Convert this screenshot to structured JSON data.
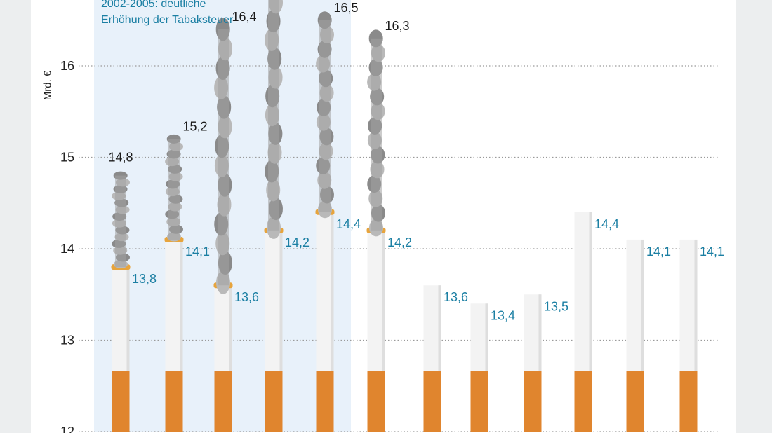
{
  "annotation": {
    "line1": "2002-2005: deutliche",
    "line2": "Erhöhung der Tabaksteuer"
  },
  "colors": {
    "panel_background": "#ffffff",
    "page_background": "#eceeef",
    "highlight_band": "#e8f1fa",
    "filter": "#e0852e",
    "paper": "#f3f3f3",
    "ash": "#8a8a8a",
    "total_label": "#1a1a1a",
    "net_label": "#1b7fa3",
    "gridline": "#9a9a9a"
  },
  "chart_data": {
    "type": "bar",
    "description_note": "",
    "ylabel": "Mrd. €",
    "ylim": [
      12,
      16.7
    ],
    "yticks": [
      12,
      13,
      14,
      15,
      16
    ],
    "ytick_labels": [
      "12",
      "13",
      "14",
      "15",
      "16"
    ],
    "grid": true,
    "series": [
      {
        "name": "",
        "role": "total",
        "values": [
          14.8,
          15.2,
          16.4,
          16.9,
          16.5,
          16.3,
          null,
          null,
          null,
          null,
          null,
          null
        ],
        "labels": [
          "14,8",
          "15,2",
          "16,4",
          "",
          "16,5",
          "16,3",
          "",
          "",
          "",
          "",
          "",
          ""
        ]
      },
      {
        "name": "",
        "role": "net",
        "values": [
          13.8,
          14.1,
          13.6,
          14.2,
          14.4,
          14.2,
          13.6,
          13.4,
          13.5,
          14.4,
          14.1,
          14.1
        ],
        "labels": [
          "13,8",
          "14,1",
          "13,6",
          "14,2",
          "14,4",
          "14,2",
          "13,6",
          "13,4",
          "13,5",
          "14,4",
          "14,1",
          "14,1"
        ]
      }
    ],
    "highlight_range": [
      0,
      3
    ]
  }
}
